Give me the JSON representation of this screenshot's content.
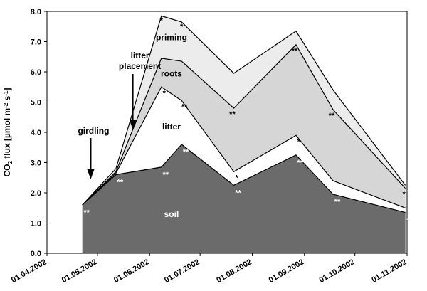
{
  "chart_data": {
    "type": "area",
    "y_axis": {
      "label_parts": [
        "CO",
        "2",
        " flux [µmol m",
        "-2",
        " s",
        "-1",
        "]"
      ],
      "range": [
        0.0,
        8.0
      ],
      "ticks": [
        "0.0",
        "1.0",
        "2.0",
        "3.0",
        "4.0",
        "5.0",
        "6.0",
        "7.0",
        "8.0"
      ]
    },
    "x_axis": {
      "range": [
        "01.04.2002",
        "01.11.2002"
      ],
      "ticks": [
        "01.04.2002",
        "01.05.2002",
        "01.06.2002",
        "01.07.2002",
        "01.08.2002",
        "01.09.2002",
        "01.10.2002",
        "01.11.2002"
      ]
    },
    "x": [
      "2002-04-22",
      "2002-05-12",
      "2002-06-08",
      "2002-06-20",
      "2002-07-21",
      "2002-08-27",
      "2002-09-18",
      "2002-10-31"
    ],
    "series": [
      {
        "name": "soil",
        "color": "#6b6b6b",
        "values": [
          1.6,
          2.6,
          2.85,
          3.6,
          2.25,
          3.25,
          1.95,
          1.35
        ]
      },
      {
        "name": "litter",
        "color": "#ffffff",
        "values": [
          1.6,
          2.65,
          5.5,
          5.05,
          2.7,
          3.9,
          2.4,
          1.5
        ]
      },
      {
        "name": "roots",
        "color": "#d6d6d6",
        "values": [
          1.6,
          2.7,
          6.45,
          6.35,
          4.8,
          6.9,
          4.75,
          2.15
        ]
      },
      {
        "name": "priming",
        "color": "#ececec",
        "values": [
          1.6,
          2.8,
          7.85,
          7.65,
          5.95,
          7.35,
          5.4,
          2.25
        ]
      }
    ],
    "significance": {
      "soil": [
        "**",
        "**",
        "**",
        "**",
        "**",
        "**",
        "**",
        "**"
      ],
      "litter": [
        "",
        "",
        "*",
        "**",
        "*",
        "*",
        "",
        ""
      ],
      "roots": [
        "",
        "",
        "",
        "",
        "**",
        "**",
        "**",
        "*"
      ],
      "priming": [
        "",
        "",
        "*",
        "*",
        "",
        "",
        "",
        ""
      ]
    },
    "annotations": [
      {
        "text": "girdling",
        "date": "2002-04-27"
      },
      {
        "text": "litter",
        "date": "2002-05-22"
      },
      {
        "text": "placement",
        "date": "2002-05-22"
      }
    ],
    "grid": false,
    "legend": "none"
  }
}
